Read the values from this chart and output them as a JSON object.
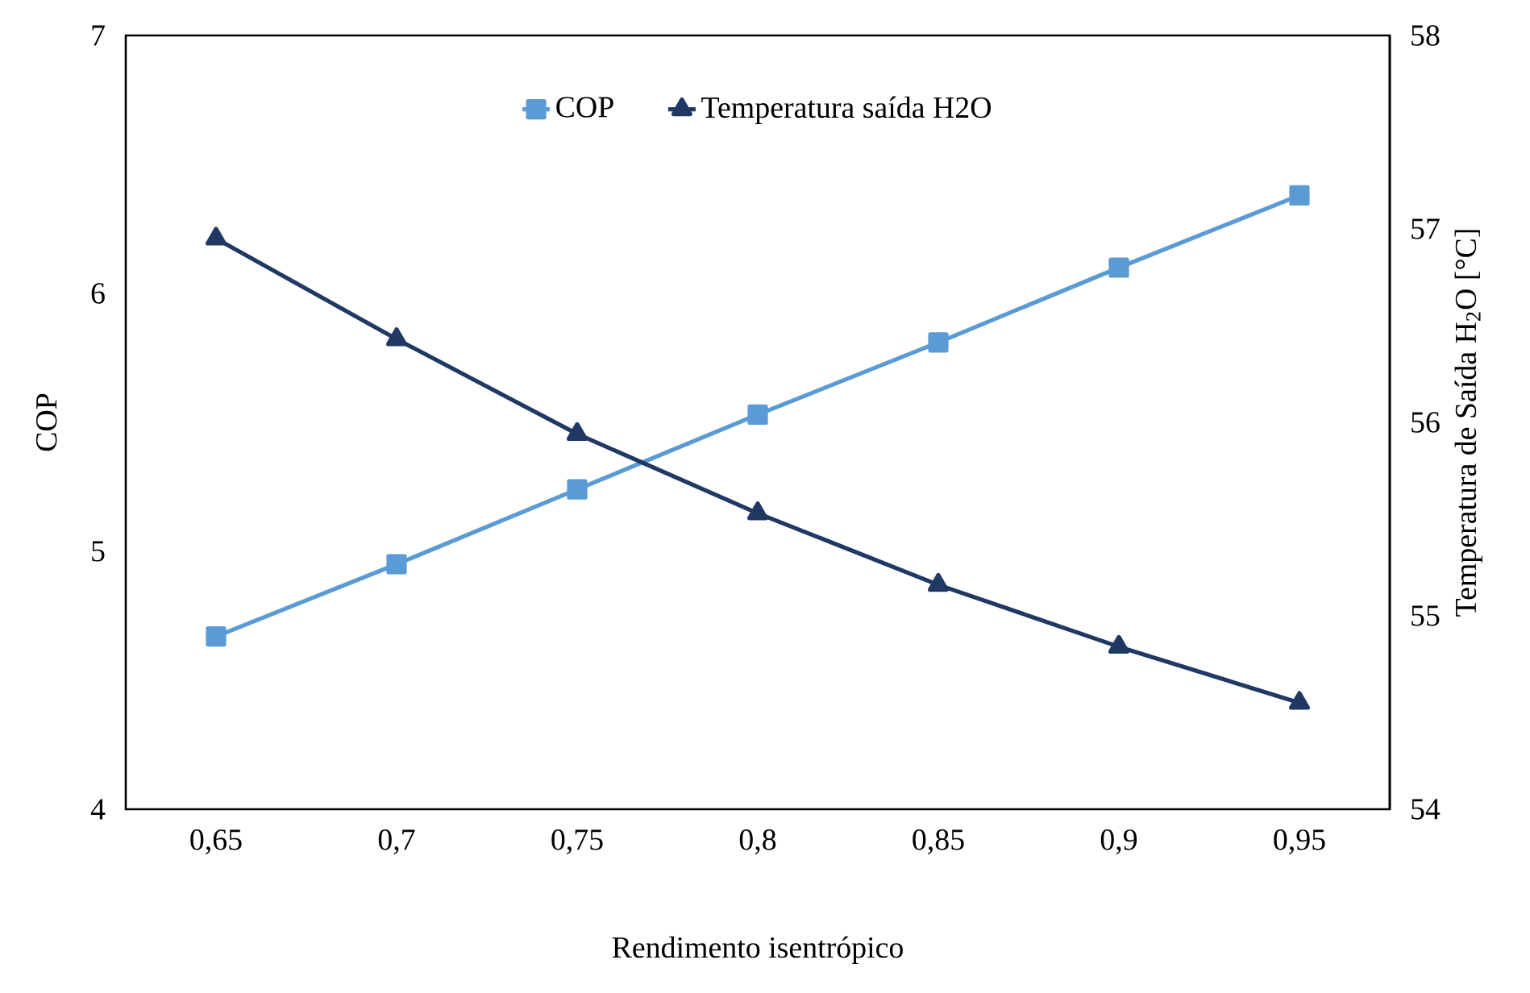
{
  "chart_data": {
    "type": "line",
    "xlabel": "Rendimento isentrópico",
    "ylabel": "COP",
    "y2label": "Temperatura de Saída H$_{2}$O [°C]",
    "categories": [
      "0,65",
      "0,7",
      "0,75",
      "0,8",
      "0,85",
      "0,9",
      "0,95"
    ],
    "series": [
      {
        "name": "COP",
        "color": "#5b9bd5",
        "marker": "square",
        "values": [
          4.67,
          4.95,
          5.24,
          5.53,
          5.81,
          6.1,
          6.38
        ]
      },
      {
        "name": "Temperatura saída H2O",
        "color": "#203864",
        "marker": "triangle",
        "axis": "y2",
        "values": [
          56.95,
          56.43,
          55.94,
          55.53,
          55.16,
          54.84,
          54.55
        ]
      }
    ],
    "ylim": [
      4,
      7
    ],
    "yticks": [
      4,
      5,
      6,
      7
    ],
    "y2lim": [
      54,
      58
    ],
    "y2ticks": [
      54,
      55,
      56,
      57,
      58
    ],
    "legend": "top",
    "line_style": "solid"
  }
}
